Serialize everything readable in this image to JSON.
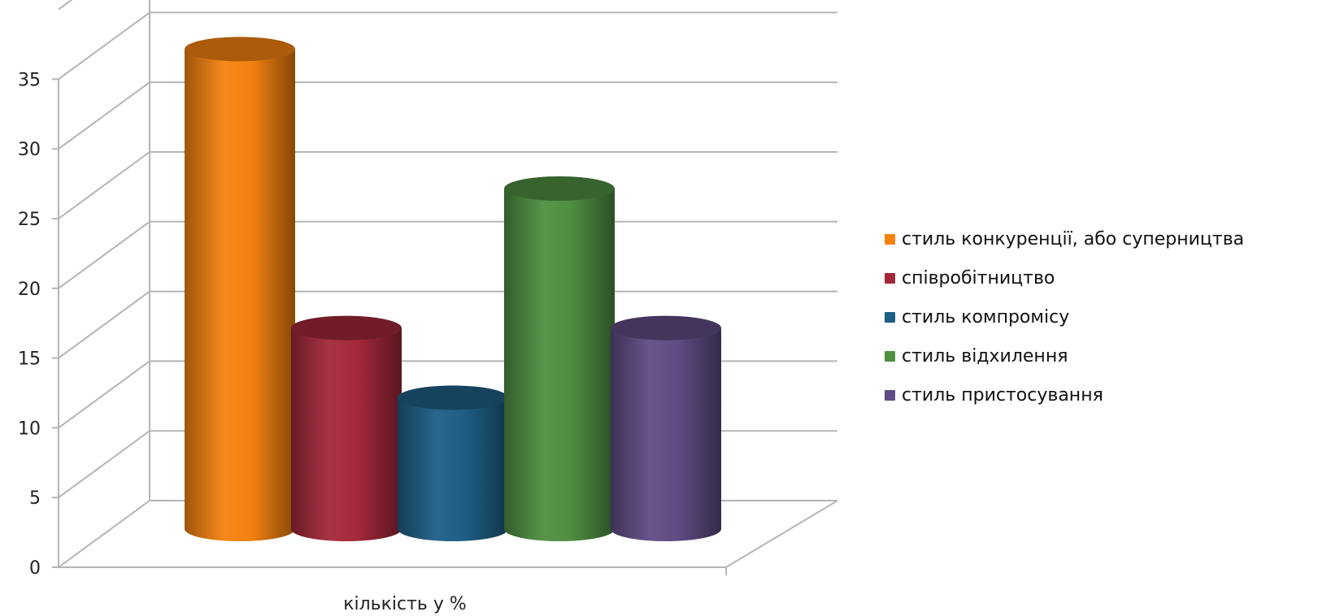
{
  "chart_data": {
    "type": "bar",
    "variant": "3d-cylinder",
    "categories": [
      "кількість у %"
    ],
    "series": [
      {
        "name": "стиль конкуренції, або суперництва",
        "values": [
          35
        ],
        "color": "#f5820f"
      },
      {
        "name": "співробітництво",
        "values": [
          15
        ],
        "color": "#a3283a"
      },
      {
        "name": "стиль компромісу",
        "values": [
          10
        ],
        "color": "#1e5f86"
      },
      {
        "name": "стиль відхилення",
        "values": [
          25
        ],
        "color": "#4f8f42"
      },
      {
        "name": "стиль пристосування",
        "values": [
          15
        ],
        "color": "#604c84"
      }
    ],
    "y_ticks": [
      "0",
      "5",
      "10",
      "15",
      "20",
      "25",
      "30",
      "35"
    ],
    "ylim": [
      0,
      40
    ],
    "grid": true,
    "legend_position": "right"
  }
}
